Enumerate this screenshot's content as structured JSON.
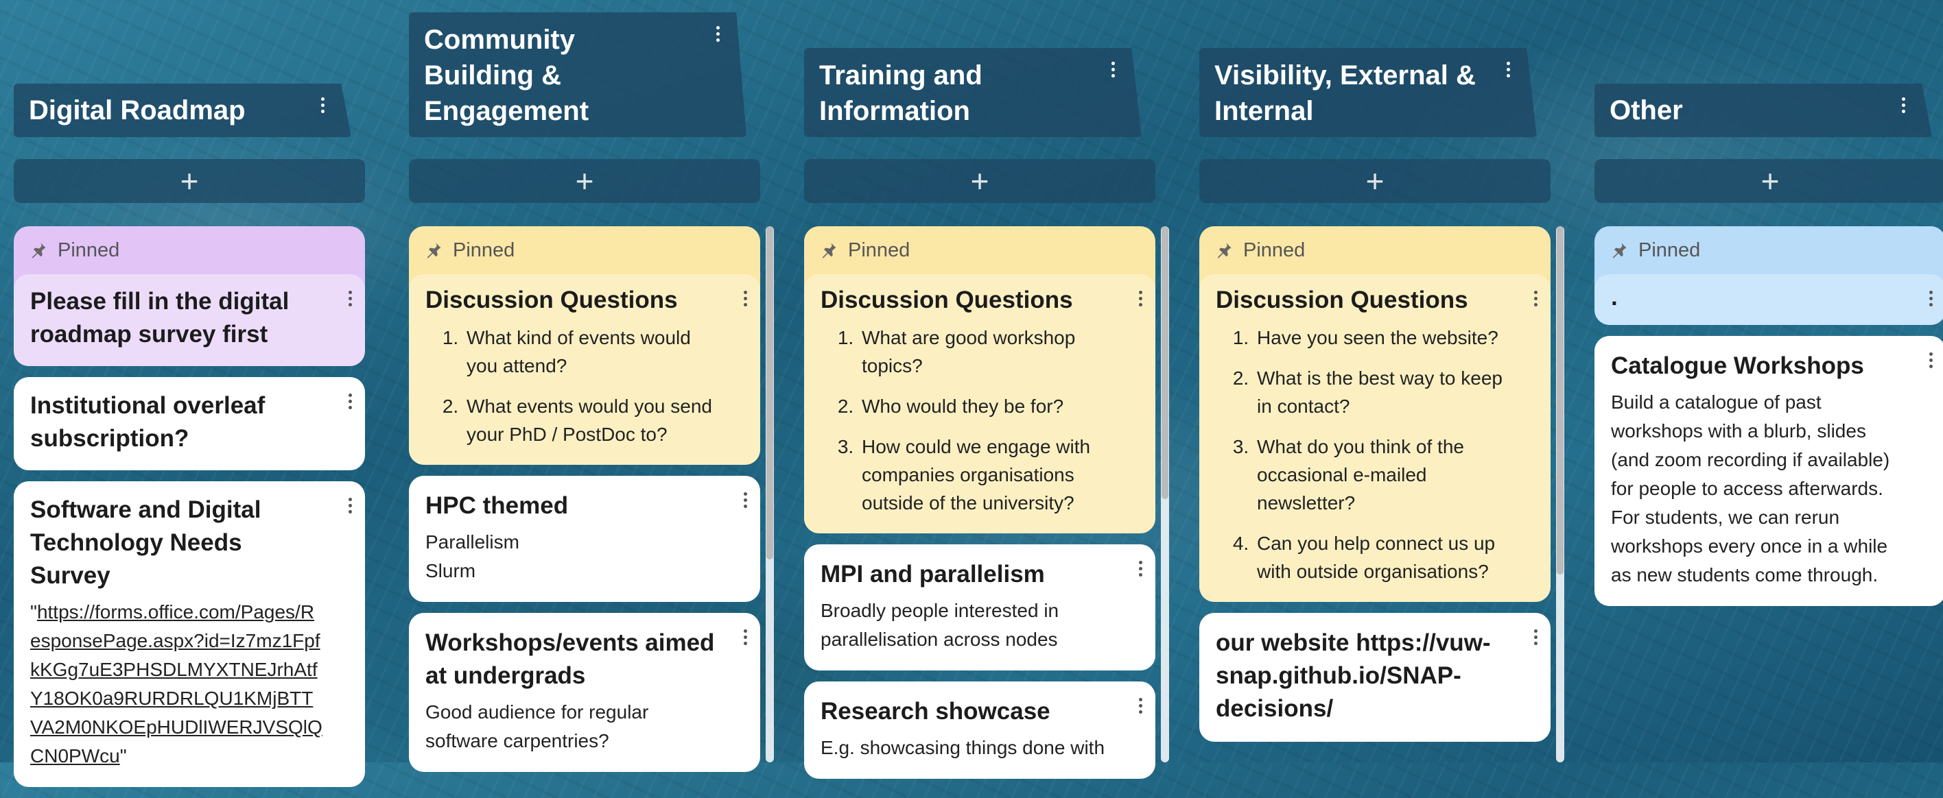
{
  "colors": {
    "header_bg": "#1e4864",
    "pinned_purple": "#e2c4f7",
    "pinned_purple_card": "#ecdcfa",
    "pinned_yellow": "#fbe7a6",
    "pinned_yellow_card": "#fcf0c3",
    "pinned_blue": "#b9dcf8",
    "pinned_blue_card": "#cce6fb"
  },
  "board": {
    "add_symbol": "+",
    "pinned_label": "Pinned",
    "columns": [
      {
        "title": "Digital Roadmap",
        "pinned": {
          "title": "Please fill in the digital roadmap survey first"
        },
        "cards": [
          {
            "title": "Institutional overleaf subscription?"
          },
          {
            "title": "Software and Digital Technology Needs Survey",
            "quote_open": "\"",
            "link": "https://forms.office.com/Pages/ResponsePage.aspx?id=Iz7mz1FpfkKGg7uE3PHSDLMYXTNEJrhAtfY18OK0a9RURDRLQU1KMjBTTVA2M0NKOEpHUDlIWERJVSQlQCN0PWcu",
            "quote_close": "\""
          }
        ]
      },
      {
        "title": "Community Building & Engagement",
        "pinned": {
          "title": "Discussion Questions",
          "items": [
            "What kind of events would you attend?",
            "What events would you send your PhD / PostDoc to?"
          ]
        },
        "cards": [
          {
            "title": "HPC themed",
            "lines": [
              "Parallelism",
              "Slurm"
            ]
          },
          {
            "title": "Workshops/events aimed at undergrads",
            "lines": [
              "Good audience for regular software carpentries?"
            ]
          }
        ]
      },
      {
        "title": "Training and Information",
        "pinned": {
          "title": "Discussion Questions",
          "items": [
            "What are good workshop topics?",
            "Who would they be for?",
            "How could we engage with companies organisations outside of the university?"
          ]
        },
        "cards": [
          {
            "title": "MPI and parallelism",
            "lines": [
              "Broadly people interested in parallelisation across nodes"
            ]
          },
          {
            "title": "Research showcase",
            "lines": [
              "E.g. showcasing things done with"
            ]
          }
        ]
      },
      {
        "title": "Visibility, External & Internal",
        "pinned": {
          "title": "Discussion Questions",
          "items": [
            "Have you seen the website?",
            "What is the best way to keep in contact?",
            "What do you think of the occasional e-mailed newsletter?",
            "Can you help connect us up with outside organisations?"
          ]
        },
        "cards": [
          {
            "title": "our website https://vuw-snap.github.io/SNAP-decisions/"
          }
        ]
      },
      {
        "title": "Other",
        "pinned": {
          "title": "."
        },
        "cards": [
          {
            "title": "Catalogue Workshops",
            "lines": [
              "Build a catalogue of past workshops with a blurb, slides (and zoom recording if available) for people to access afterwards. For students, we can rerun workshops every once in a while as new students come through."
            ]
          }
        ]
      }
    ]
  }
}
